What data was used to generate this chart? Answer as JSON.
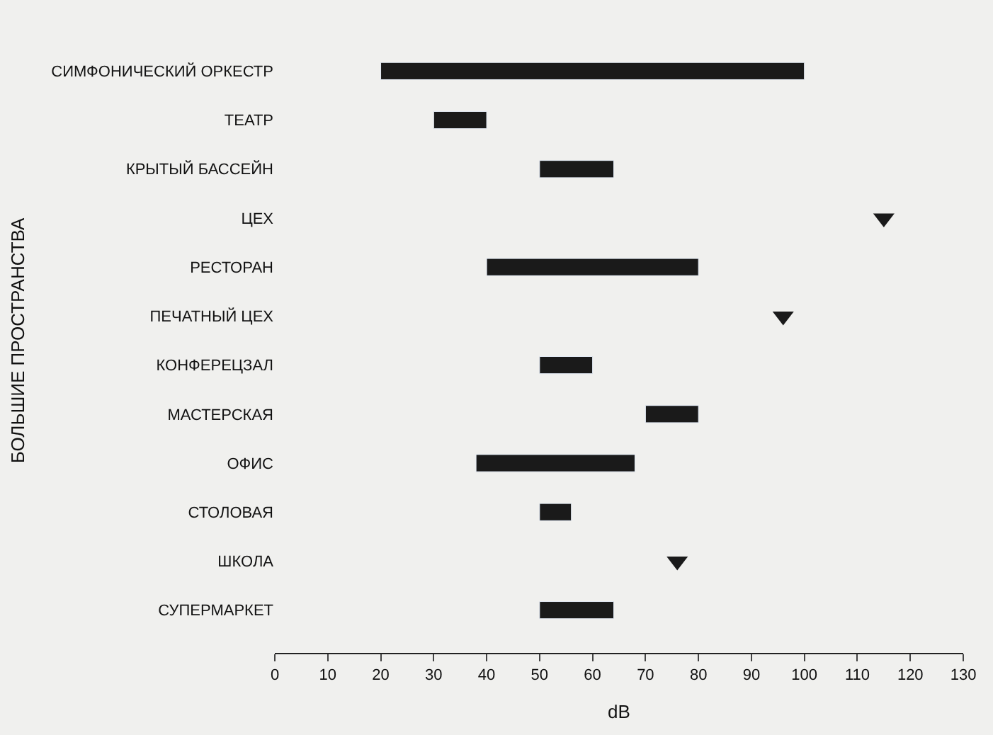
{
  "chart_data": {
    "type": "bar",
    "orientation": "horizontal",
    "ylabel": "БОЛЬШИЕ ПРОСТРАНСТВА",
    "xlabel": "dB",
    "categories": [
      "СИМФОНИЧЕСКИЙ ОРКЕСТР",
      "ТЕАТР",
      "КРЫТЫЙ БАССЕЙН",
      "ЦЕХ",
      "РЕСТОРАН",
      "ПЕЧАТНЫЙ ЦЕХ",
      "КОНФЕРЕЦЗАЛ",
      "МАСТЕРСКАЯ",
      "ОФИС",
      "СТОЛОВАЯ",
      "ШКОЛА",
      "СУПЕРМАРКЕТ"
    ],
    "series": [
      {
        "color": "#1a1a1a",
        "base": [
          20,
          30,
          50,
          null,
          40,
          null,
          50,
          70,
          38,
          50,
          null,
          50
        ],
        "values": [
          80,
          10,
          14,
          null,
          40,
          null,
          10,
          10,
          30,
          6,
          null,
          14
        ]
      },
      {
        "type": "scatter",
        "marker": "triangle",
        "color": "#1a1a1a",
        "values": [
          null,
          null,
          null,
          115,
          null,
          96,
          null,
          null,
          null,
          null,
          76,
          null
        ]
      }
    ],
    "xlim": [
      0,
      130
    ],
    "xticks": [
      0,
      10,
      20,
      30,
      40,
      50,
      60,
      70,
      80,
      90,
      100,
      110,
      120,
      130
    ],
    "grid": false
  }
}
